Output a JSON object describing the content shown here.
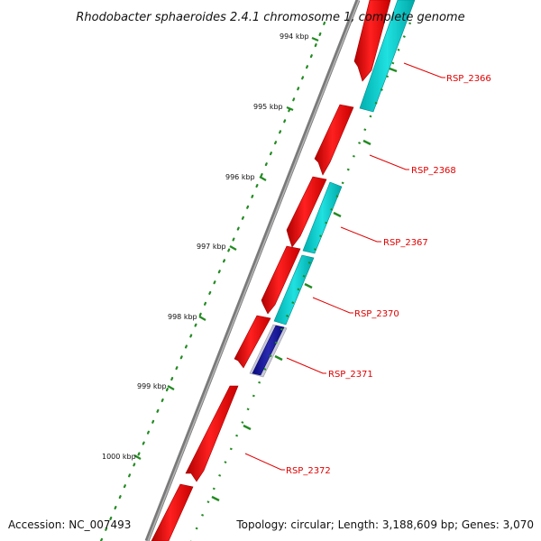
{
  "title": "Rhodobacter sphaeroides 2.4.1 chromosome 1, complete genome",
  "footer": {
    "accession": "Accession: NC_007493",
    "summary": "Topology: circular; Length: 3,188,609 bp; Genes: 3,070"
  },
  "colors": {
    "backbone": "#808080",
    "forward_gene": "#ff0000",
    "reverse_gene": "#00cccc",
    "other_gene": "#1a1aa0",
    "tick_dots": "#228b22",
    "gene_label": "#e00000",
    "leader_line": "#e00000"
  },
  "outer_ticks": [
    {
      "label": "994 kbp"
    },
    {
      "label": "995 kbp"
    },
    {
      "label": "996 kbp"
    },
    {
      "label": "997 kbp"
    },
    {
      "label": "998 kbp"
    },
    {
      "label": "999 kbp"
    },
    {
      "label": "1000 kbp"
    }
  ],
  "gene_labels": [
    {
      "label": "RSP_2366"
    },
    {
      "label": "RSP_2368"
    },
    {
      "label": "RSP_2367"
    },
    {
      "label": "RSP_2370"
    },
    {
      "label": "RSP_2371"
    },
    {
      "label": "RSP_2372"
    }
  ]
}
